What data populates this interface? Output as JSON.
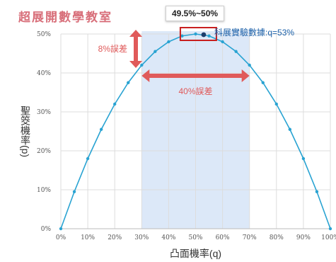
{
  "watermark": "超展開數學教室",
  "callout": "49.5%~50%",
  "chart_data": {
    "type": "line",
    "title": "",
    "xlabel": "凸面機率(q)",
    "ylabel": "聖筊機率(p)",
    "xlim": [
      0,
      100
    ],
    "ylim": [
      0,
      50
    ],
    "x_ticks": [
      "0%",
      "10%",
      "20%",
      "30%",
      "40%",
      "50%",
      "60%",
      "70%",
      "80%",
      "90%",
      "100%"
    ],
    "y_ticks": [
      "0%",
      "10%",
      "20%",
      "30%",
      "40%",
      "50%"
    ],
    "grid": true,
    "series": [
      {
        "color": "#29a3d2",
        "x": [
          0,
          5,
          10,
          15,
          20,
          25,
          30,
          35,
          40,
          45,
          50,
          55,
          60,
          65,
          70,
          75,
          80,
          85,
          90,
          95,
          100
        ],
        "y": [
          0,
          9.5,
          18,
          25.5,
          32,
          37.5,
          42,
          45.5,
          48,
          49.5,
          50,
          49.5,
          48,
          45.5,
          42,
          37.5,
          32,
          25.5,
          18,
          9.5,
          0
        ]
      }
    ],
    "highlight_point": {
      "x": 53,
      "y": 49.82,
      "color": "#1c3d6b"
    },
    "shaded_band": {
      "x_range": [
        30,
        70
      ],
      "color": "#dce8f8"
    },
    "annotations": [
      {
        "text": "科展實驗數據:q=53%",
        "color": "#1a5fa8"
      },
      {
        "text": "8%誤差",
        "color": "#e05a5a",
        "y_range": [
          42,
          50
        ]
      },
      {
        "text": "40%誤差",
        "color": "#e05a5a",
        "x_range": [
          30,
          70
        ]
      }
    ]
  }
}
